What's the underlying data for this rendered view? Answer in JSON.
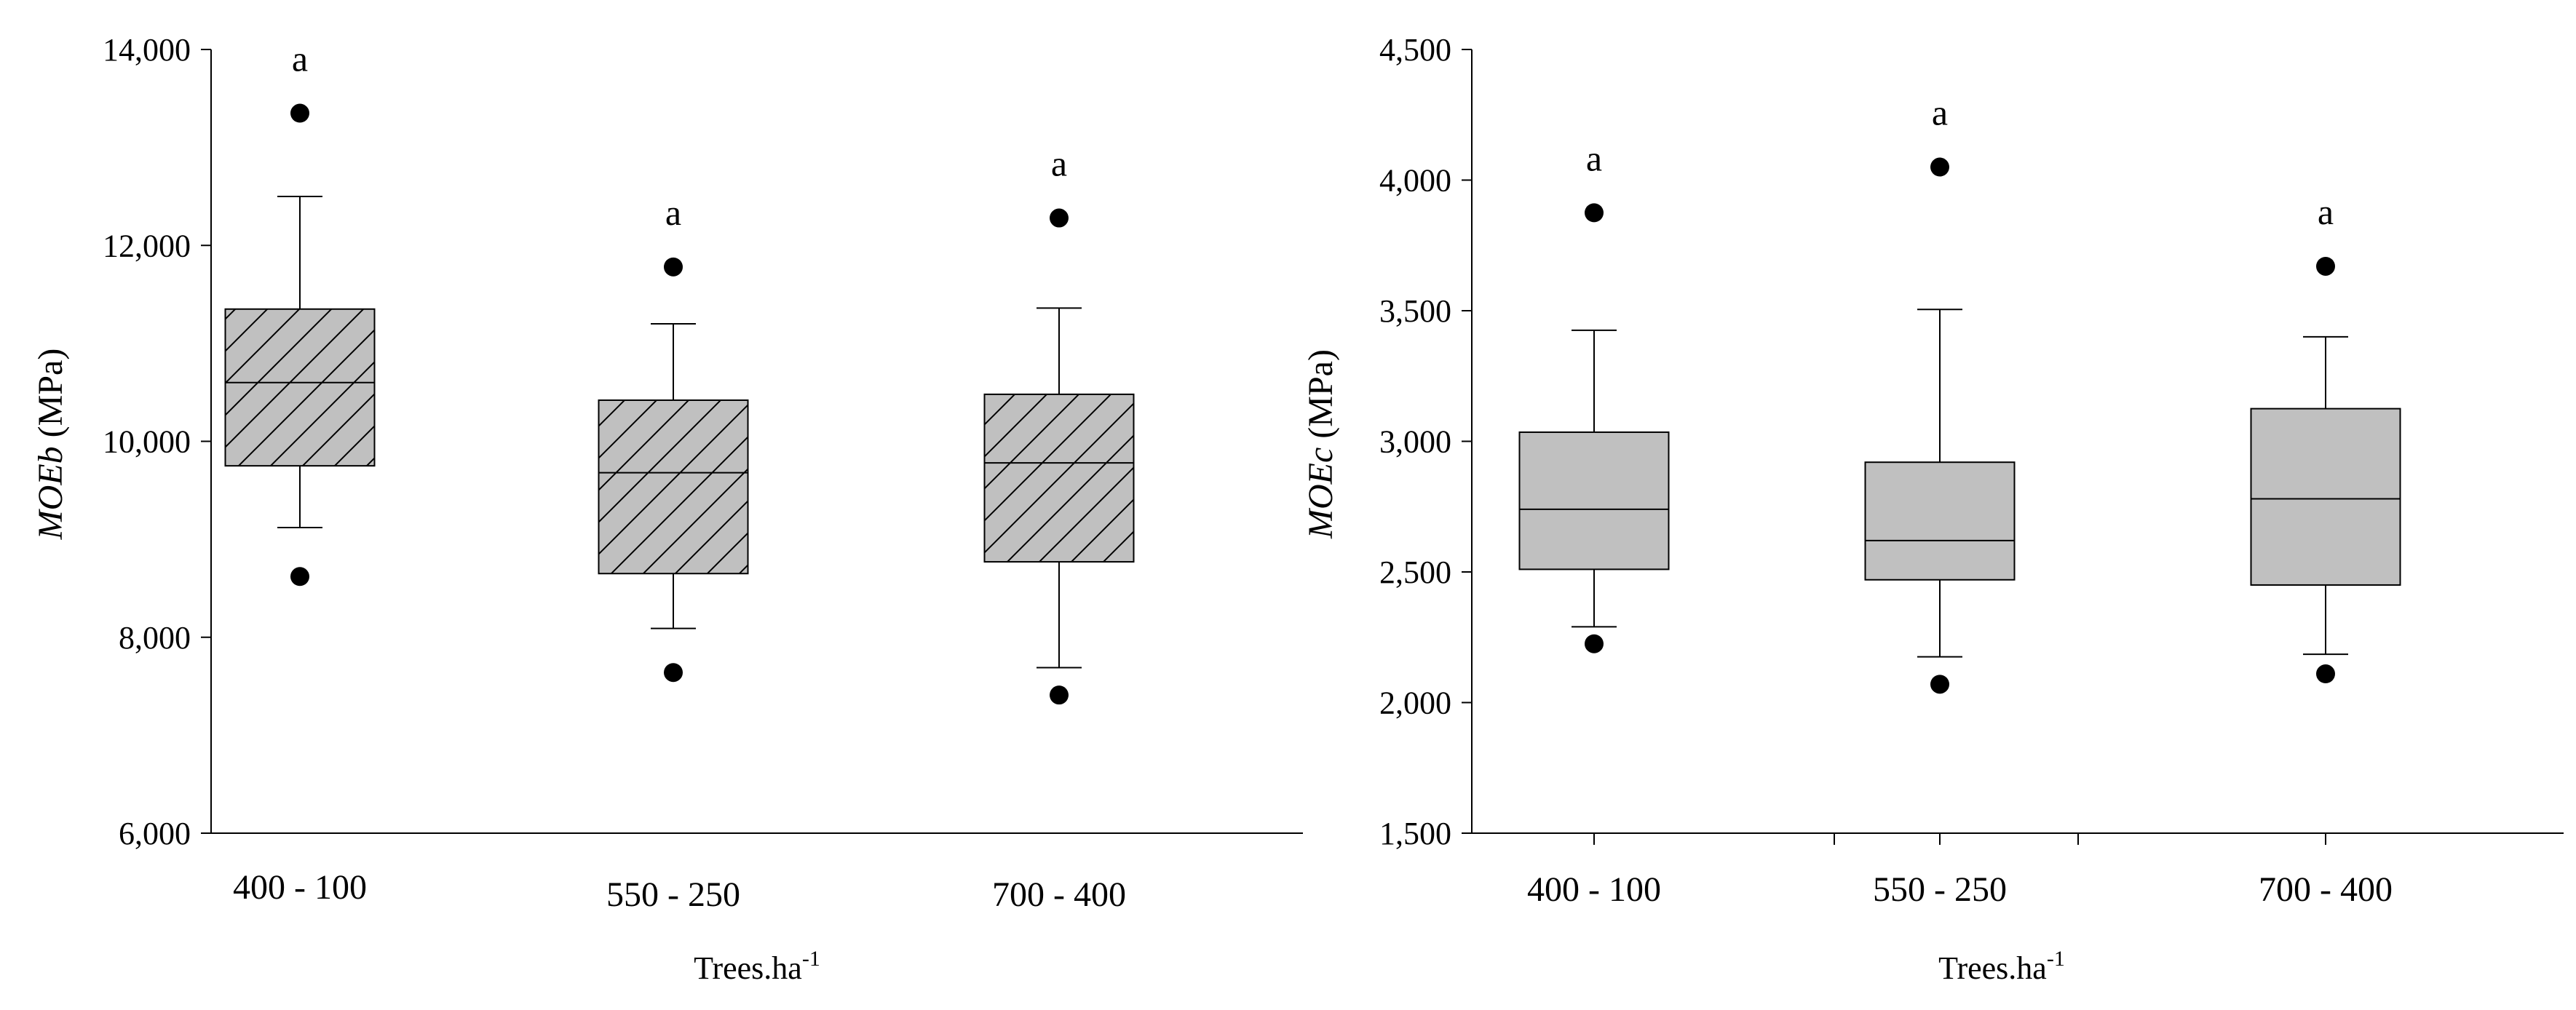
{
  "chart_data": [
    {
      "type": "box",
      "ylabel_var": "MOEb",
      "ylabel_unit": " (MPa)",
      "xlabel_base": "Trees.ha",
      "xlabel_sup": "-1",
      "ylim": [
        6000,
        14000
      ],
      "yticks": [
        6000,
        8000,
        10000,
        12000,
        14000
      ],
      "ytick_labels": [
        "6,000",
        "8,000",
        "10,000",
        "12,000",
        "14,000"
      ],
      "box_fill": "#c0c0c0",
      "hatched": true,
      "categories": [
        "400 - 100",
        "550 - 250",
        "700 - 400"
      ],
      "boxes": [
        {
          "q1": 9750,
          "median": 10600,
          "q3": 11350,
          "whisker_low": 9120,
          "whisker_high": 12500,
          "outliers": [
            8620,
            13350
          ],
          "sig": "a"
        },
        {
          "q1": 8650,
          "median": 9680,
          "q3": 10420,
          "whisker_low": 8090,
          "whisker_high": 11200,
          "outliers": [
            7640,
            11780
          ],
          "sig": "a"
        },
        {
          "q1": 8770,
          "median": 9780,
          "q3": 10480,
          "whisker_low": 7690,
          "whisker_high": 11360,
          "outliers": [
            7410,
            12280
          ],
          "sig": "a"
        }
      ]
    },
    {
      "type": "box",
      "ylabel_var": "MOEc",
      "ylabel_unit": " (MPa)",
      "xlabel_base": "Trees.ha",
      "xlabel_sup": "-1",
      "ylim": [
        1500,
        4500
      ],
      "yticks": [
        1500,
        2000,
        2500,
        3000,
        3500,
        4000,
        4500
      ],
      "ytick_labels": [
        "1,500",
        "2,000",
        "2,500",
        "3,000",
        "3,500",
        "4,000",
        "4,500"
      ],
      "box_fill": "#c0c0c0",
      "hatched": false,
      "categories": [
        "400 - 100",
        "550 - 250",
        "700 - 400"
      ],
      "boxes": [
        {
          "q1": 2510,
          "median": 2740,
          "q3": 3035,
          "whisker_low": 2290,
          "whisker_high": 3425,
          "outliers": [
            2225,
            3875
          ],
          "sig": "a"
        },
        {
          "q1": 2470,
          "median": 2620,
          "q3": 2920,
          "whisker_low": 2175,
          "whisker_high": 3505,
          "outliers": [
            2070,
            4050
          ],
          "sig": "a"
        },
        {
          "q1": 2450,
          "median": 2780,
          "q3": 3125,
          "whisker_low": 2185,
          "whisker_high": 3400,
          "outliers": [
            2110,
            3670
          ],
          "sig": "a"
        }
      ]
    }
  ]
}
